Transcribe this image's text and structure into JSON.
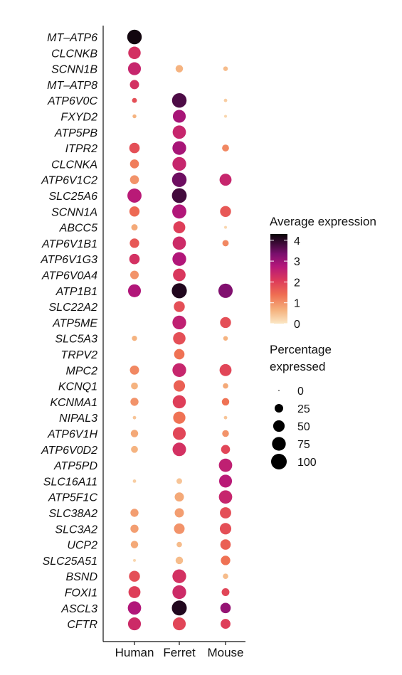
{
  "chart_data": {
    "type": "dotplot",
    "species": [
      "Human",
      "Ferret",
      "Mouse"
    ],
    "genes": [
      "MT–ATP6",
      "CLCNKB",
      "SCNN1B",
      "MT–ATP8",
      "ATP6V0C",
      "FXYD2",
      "ATP5PB",
      "ITPR2",
      "CLCNKA",
      "ATP6V1C2",
      "SLC25A6",
      "SCNN1A",
      "ABCC5",
      "ATP6V1B1",
      "ATP6V1G3",
      "ATP6V0A4",
      "ATP1B1",
      "SLC22A2",
      "ATP5ME",
      "SLC5A3",
      "TRPV2",
      "MPC2",
      "KCNQ1",
      "KCNMA1",
      "NIPAL3",
      "ATP6V1H",
      "ATP6V0D2",
      "ATP5PD",
      "SLC16A11",
      "ATP5F1C",
      "SLC38A2",
      "SLC3A2",
      "UCP2",
      "SLC25A51",
      "BSND",
      "FOXI1",
      "ASCL3",
      "CFTR"
    ],
    "average_expression": [
      [
        4.2,
        null,
        null
      ],
      [
        2.0,
        null,
        null
      ],
      [
        2.2,
        0.6,
        0.5
      ],
      [
        2.0,
        null,
        null
      ],
      [
        1.6,
        3.5,
        0.3
      ],
      [
        0.6,
        2.6,
        0.2
      ],
      [
        null,
        2.2,
        null
      ],
      [
        1.6,
        2.6,
        1.0
      ],
      [
        1.1,
        2.2,
        null
      ],
      [
        0.9,
        3.2,
        2.2
      ],
      [
        2.4,
        3.6,
        null
      ],
      [
        1.3,
        2.5,
        1.5
      ],
      [
        0.7,
        1.8,
        0.2
      ],
      [
        1.5,
        2.1,
        1.0
      ],
      [
        2.0,
        2.5,
        null
      ],
      [
        0.9,
        1.9,
        null
      ],
      [
        2.5,
        4.0,
        3.0
      ],
      [
        null,
        1.6,
        null
      ],
      [
        0.3,
        2.3,
        1.6
      ],
      [
        0.6,
        1.6,
        0.6
      ],
      [
        null,
        1.2,
        null
      ],
      [
        1.0,
        2.2,
        1.7
      ],
      [
        0.6,
        1.4,
        0.7
      ],
      [
        0.9,
        1.8,
        1.2
      ],
      [
        0.4,
        1.2,
        0.4
      ],
      [
        0.7,
        1.7,
        0.9
      ],
      [
        0.6,
        2.0,
        1.7
      ],
      [
        null,
        null,
        2.3
      ],
      [
        0.3,
        0.4,
        2.4
      ],
      [
        null,
        0.7,
        2.2
      ],
      [
        0.8,
        0.8,
        1.6
      ],
      [
        0.8,
        0.9,
        1.6
      ],
      [
        0.7,
        0.5,
        1.4
      ],
      [
        0.2,
        0.5,
        1.2
      ],
      [
        1.6,
        2.0,
        0.5
      ],
      [
        1.8,
        2.1,
        1.7
      ],
      [
        2.5,
        4.0,
        2.8
      ],
      [
        2.1,
        1.7,
        1.8
      ]
    ],
    "percent_expressed": [
      [
        85,
        0,
        0
      ],
      [
        60,
        0,
        0
      ],
      [
        65,
        18,
        5
      ],
      [
        30,
        0,
        0
      ],
      [
        6,
        85,
        2
      ],
      [
        3,
        65,
        1
      ],
      [
        0,
        70,
        0
      ],
      [
        40,
        75,
        15
      ],
      [
        28,
        75,
        0
      ],
      [
        28,
        85,
        55
      ],
      [
        80,
        88,
        0
      ],
      [
        38,
        80,
        45
      ],
      [
        12,
        55,
        1
      ],
      [
        32,
        70,
        12
      ],
      [
        40,
        75,
        0
      ],
      [
        25,
        62,
        0
      ],
      [
        65,
        92,
        82
      ],
      [
        0,
        45,
        0
      ],
      [
        0,
        75,
        45
      ],
      [
        7,
        60,
        5
      ],
      [
        0,
        40,
        0
      ],
      [
        30,
        75,
        55
      ],
      [
        15,
        50,
        8
      ],
      [
        22,
        68,
        18
      ],
      [
        2,
        58,
        2
      ],
      [
        18,
        65,
        14
      ],
      [
        15,
        72,
        28
      ],
      [
        0,
        0,
        70
      ],
      [
        2,
        9,
        65
      ],
      [
        0,
        30,
        70
      ],
      [
        22,
        30,
        48
      ],
      [
        22,
        42,
        50
      ],
      [
        18,
        8,
        40
      ],
      [
        1,
        18,
        32
      ],
      [
        45,
        75,
        8
      ],
      [
        55,
        75,
        20
      ],
      [
        70,
        90,
        40
      ],
      [
        65,
        65,
        35
      ]
    ],
    "legend": {
      "color_title": "Average expression",
      "color_ticks": [
        "4",
        "3",
        "2",
        "1",
        "0"
      ],
      "color_range": [
        0,
        4.3
      ],
      "size_title_line1": "Percentage",
      "size_title_line2": "expressed",
      "size_labels": [
        "0",
        "25",
        "50",
        "75",
        "100"
      ],
      "size_values": [
        0,
        25,
        50,
        75,
        100
      ]
    },
    "colors": {
      "stops": [
        "#fbe7c5",
        "#f5b27e",
        "#ef6f52",
        "#dd3a5a",
        "#b5177a",
        "#7a0f6d",
        "#3a0a35",
        "#0a0508"
      ]
    }
  }
}
